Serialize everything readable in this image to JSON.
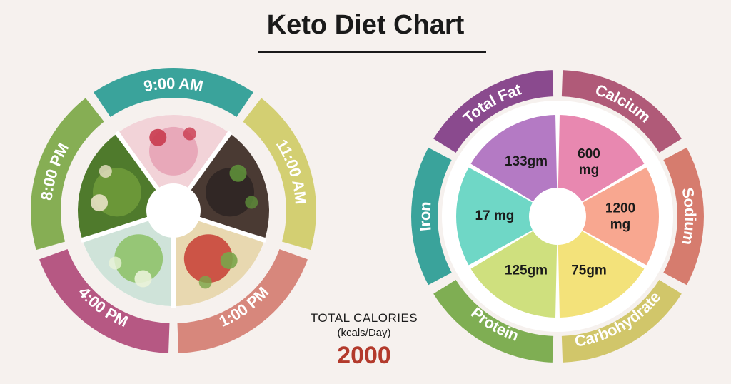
{
  "title": "Keto Diet Chart",
  "meal_schedule": {
    "times": [
      "9:00 AM",
      "11:00 AM",
      "1:00 PM",
      "4:00 PM",
      "8:00 PM"
    ],
    "colors": [
      "#3aa39b",
      "#d3cf72",
      "#d7877c",
      "#b65883",
      "#86ae54"
    ]
  },
  "calories": {
    "label": "TOTAL CALORIES",
    "unit": "(kcals/Day)",
    "value": "2000"
  },
  "nutrients": [
    {
      "name": "Total Fat",
      "amount": "133gm",
      "color": "#8a4a8e",
      "inner_color": "#b47ac4"
    },
    {
      "name": "Calcium",
      "amount": "600 mg",
      "color": "#b05a78",
      "inner_color": "#e888b0"
    },
    {
      "name": "Sodium",
      "amount": "1200 mg",
      "color": "#d67c6e",
      "inner_color": "#f8a790"
    },
    {
      "name": "Carbohydrate",
      "amount": "75gm",
      "color": "#d1c66a",
      "inner_color": "#f3e27a"
    },
    {
      "name": "Protein",
      "amount": "125gm",
      "color": "#7fae53",
      "inner_color": "#cfe07e"
    },
    {
      "name": "Iron",
      "amount": "17 mg",
      "color": "#3aa39b",
      "inner_color": "#6fd7c6"
    }
  ],
  "food_icons": [
    "smoothie-photo",
    "bean-soup-photo",
    "salad-photo",
    "cucumber-photo",
    "spinach-curry-photo"
  ]
}
